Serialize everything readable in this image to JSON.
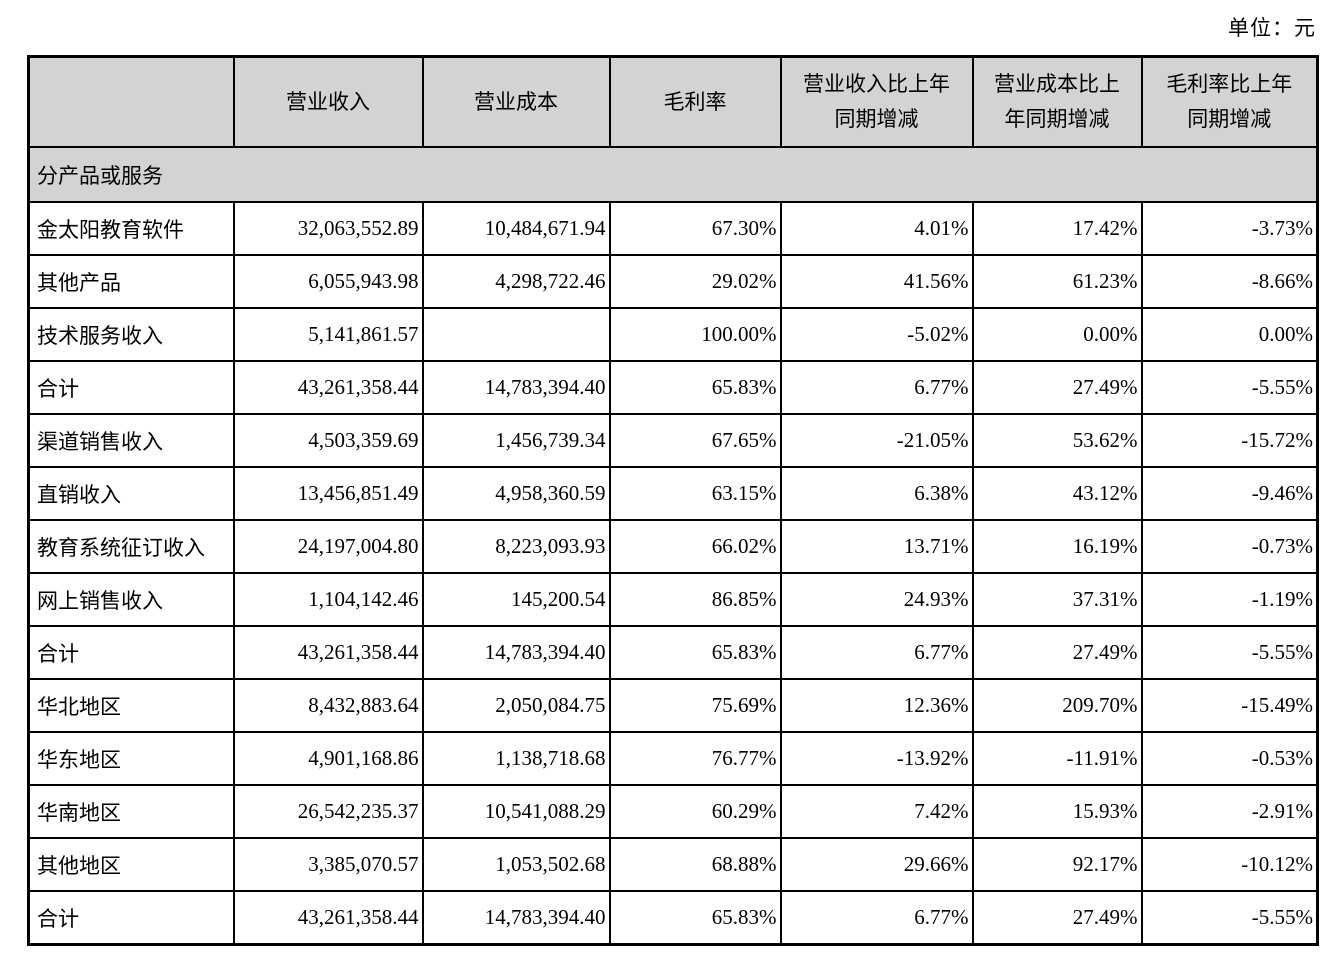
{
  "unit_label": "单位：元",
  "table": {
    "headers": [
      "",
      "营业收入",
      "营业成本",
      "毛利率",
      "营业收入比上年\n同期增减",
      "营业成本比上\n年同期增减",
      "毛利率比上年\n同期增减"
    ],
    "section_label": "分产品或服务",
    "rows": [
      {
        "cells": [
          "金太阳教育软件",
          "32,063,552.89",
          "10,484,671.94",
          "67.30%",
          "4.01%",
          "17.42%",
          "-3.73%"
        ]
      },
      {
        "cells": [
          "其他产品",
          "6,055,943.98",
          "4,298,722.46",
          "29.02%",
          "41.56%",
          "61.23%",
          "-8.66%"
        ]
      },
      {
        "cells": [
          "技术服务收入",
          "5,141,861.57",
          "",
          "100.00%",
          "-5.02%",
          "0.00%",
          "0.00%"
        ]
      },
      {
        "cells": [
          "合计",
          "43,261,358.44",
          "14,783,394.40",
          "65.83%",
          "6.77%",
          "27.49%",
          "-5.55%"
        ]
      },
      {
        "cells": [
          "渠道销售收入",
          "4,503,359.69",
          "1,456,739.34",
          "67.65%",
          "-21.05%",
          "53.62%",
          "-15.72%"
        ]
      },
      {
        "cells": [
          "直销收入",
          "13,456,851.49",
          "4,958,360.59",
          "63.15%",
          "6.38%",
          "43.12%",
          "-9.46%"
        ]
      },
      {
        "cells": [
          "教育系统征订收入",
          "24,197,004.80",
          "8,223,093.93",
          "66.02%",
          "13.71%",
          "16.19%",
          "-0.73%"
        ]
      },
      {
        "cells": [
          "网上销售收入",
          "1,104,142.46",
          "145,200.54",
          "86.85%",
          "24.93%",
          "37.31%",
          "-1.19%"
        ]
      },
      {
        "cells": [
          "合计",
          "43,261,358.44",
          "14,783,394.40",
          "65.83%",
          "6.77%",
          "27.49%",
          "-5.55%"
        ]
      },
      {
        "cells": [
          "华北地区",
          "8,432,883.64",
          "2,050,084.75",
          "75.69%",
          "12.36%",
          "209.70%",
          "-15.49%"
        ]
      },
      {
        "cells": [
          "华东地区",
          "4,901,168.86",
          "1,138,718.68",
          "76.77%",
          "-13.92%",
          "-11.91%",
          "-0.53%"
        ]
      },
      {
        "cells": [
          "华南地区",
          "26,542,235.37",
          "10,541,088.29",
          "60.29%",
          "7.42%",
          "15.93%",
          "-2.91%"
        ]
      },
      {
        "cells": [
          "其他地区",
          "3,385,070.57",
          "1,053,502.68",
          "68.88%",
          "29.66%",
          "92.17%",
          "-10.12%"
        ]
      },
      {
        "cells": [
          "合计",
          "43,261,358.44",
          "14,783,394.40",
          "65.83%",
          "6.77%",
          "27.49%",
          "-5.55%"
        ]
      }
    ]
  }
}
